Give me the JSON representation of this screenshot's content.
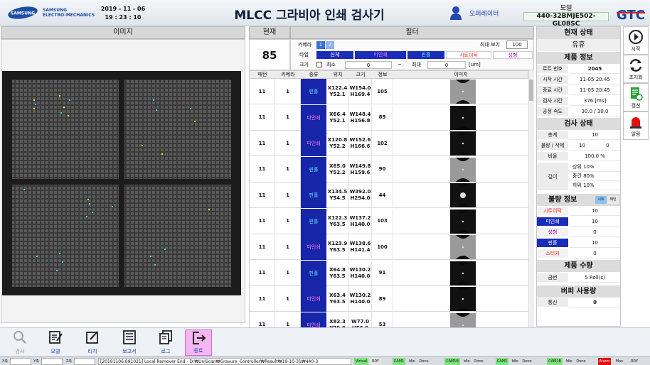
{
  "header": {
    "logo_brand": "SAMSUNG",
    "logo_sub1": "SAMSUNG",
    "logo_sub2": "ELECTRO-MECHANICS",
    "date": "2019 - 11 - 06",
    "time": "19 : 23 : 10",
    "title": "MLCC 그라비아 인쇄 검사기",
    "operator": "오퍼레이터",
    "model_label": "모델",
    "model_value": "440-32BMJE502-GL08SC",
    "right_logo": "GTC"
  },
  "image_panel": {
    "title": "이미지"
  },
  "current": {
    "title": "현재",
    "value": "85"
  },
  "filter": {
    "title": "필터",
    "camera_label": "카메라",
    "cam1": "1",
    "cam2": "2",
    "max_view_label": "최대 보기",
    "max_view_value": "100",
    "type_label": "타입",
    "types": [
      "신체",
      "미인쇄",
      "핀홀",
      "시트이탁",
      "성형"
    ],
    "size_label": "크기",
    "min_label": "최소",
    "min_value": "0",
    "max_label": "최대",
    "max_value": "0",
    "unit": "[um]",
    "dash": "~"
  },
  "grid": {
    "headers": [
      "패턴",
      "카메라",
      "종류",
      "위치",
      "크기",
      "정보",
      "이미지"
    ],
    "rows": [
      {
        "pattern": "11",
        "camera": "1",
        "type": "핀홀",
        "pos1": "X122.4",
        "pos2": "Y52.1",
        "size1": "W154.0",
        "size2": "H169.4",
        "info": "105"
      },
      {
        "pattern": "11",
        "camera": "1",
        "type": "미인쇄",
        "pos1": "X66.4",
        "pos2": "Y52.1",
        "size1": "W148.4",
        "size2": "H156.8",
        "info": "89"
      },
      {
        "pattern": "11",
        "camera": "1",
        "type": "미인쇄",
        "pos1": "X120.8",
        "pos2": "Y52.2",
        "size1": "W152.6",
        "size2": "H166.6",
        "info": "102"
      },
      {
        "pattern": "11",
        "camera": "1",
        "type": "핀홀",
        "pos1": "X65.0",
        "pos2": "Y52.2",
        "size1": "W149.8",
        "size2": "H159.6",
        "info": "90"
      },
      {
        "pattern": "11",
        "camera": "1",
        "type": "핀홀",
        "pos1": "X134.5",
        "pos2": "Y54.5",
        "size1": "W392.0",
        "size2": "H294.0",
        "info": "44"
      },
      {
        "pattern": "11",
        "camera": "1",
        "type": "핀홀",
        "pos1": "X122.3",
        "pos2": "Y63.5",
        "size1": "W137.2",
        "size2": "H140.0",
        "info": "103"
      },
      {
        "pattern": "11",
        "camera": "1",
        "type": "미인쇄",
        "pos1": "X123.9",
        "pos2": "Y63.5",
        "size1": "W138.6",
        "size2": "H141.4",
        "info": "100"
      },
      {
        "pattern": "11",
        "camera": "1",
        "type": "핀홀",
        "pos1": "X64.8",
        "pos2": "Y63.5",
        "size1": "W130.2",
        "size2": "H140.0",
        "info": "91"
      },
      {
        "pattern": "11",
        "camera": "1",
        "type": "미인쇄",
        "pos1": "X63.4",
        "pos2": "Y63.5",
        "size1": "W130.2",
        "size2": "H140.0",
        "info": "89"
      },
      {
        "pattern": "11",
        "camera": "1",
        "type": "미인쇄",
        "pos1": "X82.3",
        "pos2": "Y70.0",
        "size1": "W77.0",
        "size2": "H56.0",
        "info": "53"
      }
    ]
  },
  "status": {
    "title": "현재 상태",
    "state": "유휴",
    "product_title": "제품 정보",
    "product": [
      {
        "label": "로트 번호",
        "value": "2045"
      },
      {
        "label": "시작 시간",
        "value": "11-05 20:45"
      },
      {
        "label": "종료 시간",
        "value": "11-05 20:45"
      },
      {
        "label": "검사 시간",
        "value": "376 [ms]"
      },
      {
        "label": "공정 속도",
        "value": "30.0 / 30.0"
      }
    ],
    "inspect_title": "검사 상태",
    "total_label": "총계",
    "total_value": "10",
    "ng_label": "불량 / 삭제",
    "ng_value": "10",
    "del_value": "0",
    "ratio_label": "비율",
    "ratio_value": "100.0 %",
    "depth_label": "깊이",
    "depth_values": [
      "상위 10%",
      "중간 80%",
      "하위 10%"
    ],
    "defect_title": "불량 정보",
    "defect_tab1": "시트",
    "defect_tab2": "패턴",
    "defects": [
      {
        "label": "시트이탁",
        "value": "10",
        "color": "#ff2222"
      },
      {
        "label": "미인쇄",
        "value": "10",
        "color": "#ffffff"
      },
      {
        "label": "성형",
        "value": "0",
        "color": "#b400b4"
      },
      {
        "label": "핀홀",
        "value": "10",
        "color": "#ffffff"
      },
      {
        "label": "스티커",
        "value": "0",
        "color": "#ff2222"
      }
    ],
    "qty_title": "제품 수량",
    "current_label": "금번",
    "current_value": "5 Roll(s)",
    "buffer_title": "버퍼 사용량",
    "comm_label": "통신",
    "comm_value": "0"
  },
  "side_buttons": [
    "시작",
    "초기화",
    "갱신",
    "알람"
  ],
  "toolbar": [
    "검사",
    "모델",
    "티치",
    "보고서",
    "로그",
    "종료"
  ],
  "statusbar": {
    "x_label": "X축",
    "y_label": "Y축",
    "z_label": "Z축",
    "log": "[20191106.091021] Local Remover End - D:₩UniScan₩Gravure_Controller₩Result₩19-10-31₩440-3",
    "virtual": "Virtual",
    "rdy": "RDY",
    "cams": [
      "CAM1",
      "CAM1B",
      "CAM2",
      "CAM2B"
    ],
    "idle": "Idle",
    "done": "Done",
    "alarm": "Alarm",
    "man": "Man"
  },
  "colors": {
    "tag_bg": "#1726a8",
    "tag_text": "#5ef3ff",
    "accent": "#1f43b8"
  }
}
